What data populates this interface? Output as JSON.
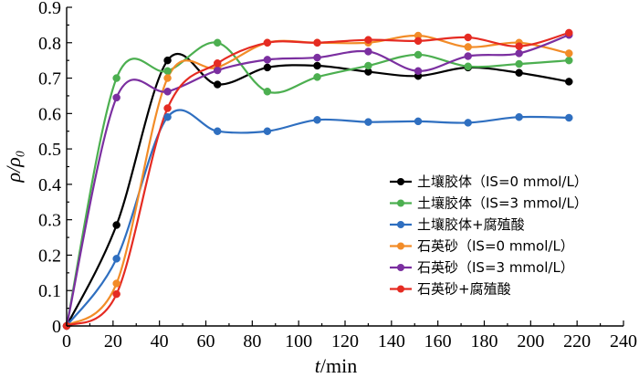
{
  "chart_data": {
    "type": "line",
    "title": "",
    "xlabel_var": "t",
    "xlabel_unit": "/min",
    "ylabel": "ρ/ρ₀",
    "xlim": [
      0,
      240
    ],
    "ylim": [
      0,
      0.9
    ],
    "xticks": [
      0,
      20,
      40,
      60,
      80,
      100,
      120,
      140,
      160,
      180,
      200,
      220,
      240
    ],
    "yticks": [
      0,
      0.1,
      0.2,
      0.3,
      0.4,
      0.5,
      0.6,
      0.7,
      0.8,
      0.9
    ],
    "xtick_labels": [
      "0",
      "20",
      "40",
      "60",
      "80",
      "100",
      "120",
      "140",
      "160",
      "180",
      "200",
      "220",
      "240"
    ],
    "ytick_labels": [
      "0",
      "0.1",
      "0.2",
      "0.3",
      "0.4",
      "0.5",
      "0.6",
      "0.7",
      "0.8",
      "0.9"
    ],
    "grid": false,
    "legend_position": "lower-right",
    "series": [
      {
        "name": "土壤胶体（IS=0 mmol/L）",
        "color": "#000000",
        "x": [
          0,
          21.5,
          43.5,
          65,
          86.5,
          108,
          130,
          151.5,
          173,
          195,
          216.5
        ],
        "y": [
          0,
          0.285,
          0.75,
          0.682,
          0.73,
          0.735,
          0.718,
          0.706,
          0.73,
          0.715,
          0.69
        ]
      },
      {
        "name": "土壤胶体（IS=3 mmol/L）",
        "color": "#4caf50",
        "x": [
          0,
          21.5,
          43.5,
          65,
          86.5,
          108,
          130,
          151.5,
          173,
          195,
          216.5
        ],
        "y": [
          0,
          0.7,
          0.72,
          0.8,
          0.662,
          0.703,
          0.735,
          0.766,
          0.733,
          0.74,
          0.75
        ]
      },
      {
        "name": "土壤胶体+腐殖酸",
        "color": "#2f6fc0",
        "x": [
          0,
          21.5,
          43.5,
          65,
          86.5,
          108,
          130,
          151.5,
          173,
          195,
          216.5
        ],
        "y": [
          0,
          0.19,
          0.59,
          0.55,
          0.55,
          0.582,
          0.576,
          0.578,
          0.574,
          0.59,
          0.588
        ]
      },
      {
        "name": "石英砂（IS=0 mmol/L）",
        "color": "#f28c28",
        "x": [
          0,
          21.5,
          43.5,
          65,
          86.5,
          108,
          130,
          151.5,
          173,
          195,
          216.5
        ],
        "y": [
          0,
          0.12,
          0.7,
          0.73,
          0.8,
          0.8,
          0.8,
          0.82,
          0.788,
          0.8,
          0.77
        ]
      },
      {
        "name": "石英砂（IS=3 mmol/L）",
        "color": "#7b2fa0",
        "x": [
          0,
          21.5,
          43.5,
          65,
          86.5,
          108,
          130,
          151.5,
          173,
          195,
          216.5
        ],
        "y": [
          0,
          0.645,
          0.662,
          0.722,
          0.752,
          0.758,
          0.775,
          0.72,
          0.762,
          0.77,
          0.822
        ]
      },
      {
        "name": "石英砂+腐殖酸",
        "color": "#e52b22",
        "x": [
          0,
          21.5,
          43.5,
          65,
          86.5,
          108,
          130,
          151.5,
          173,
          195,
          216.5
        ],
        "y": [
          0,
          0.09,
          0.615,
          0.742,
          0.8,
          0.8,
          0.808,
          0.805,
          0.815,
          0.79,
          0.828
        ]
      }
    ]
  }
}
